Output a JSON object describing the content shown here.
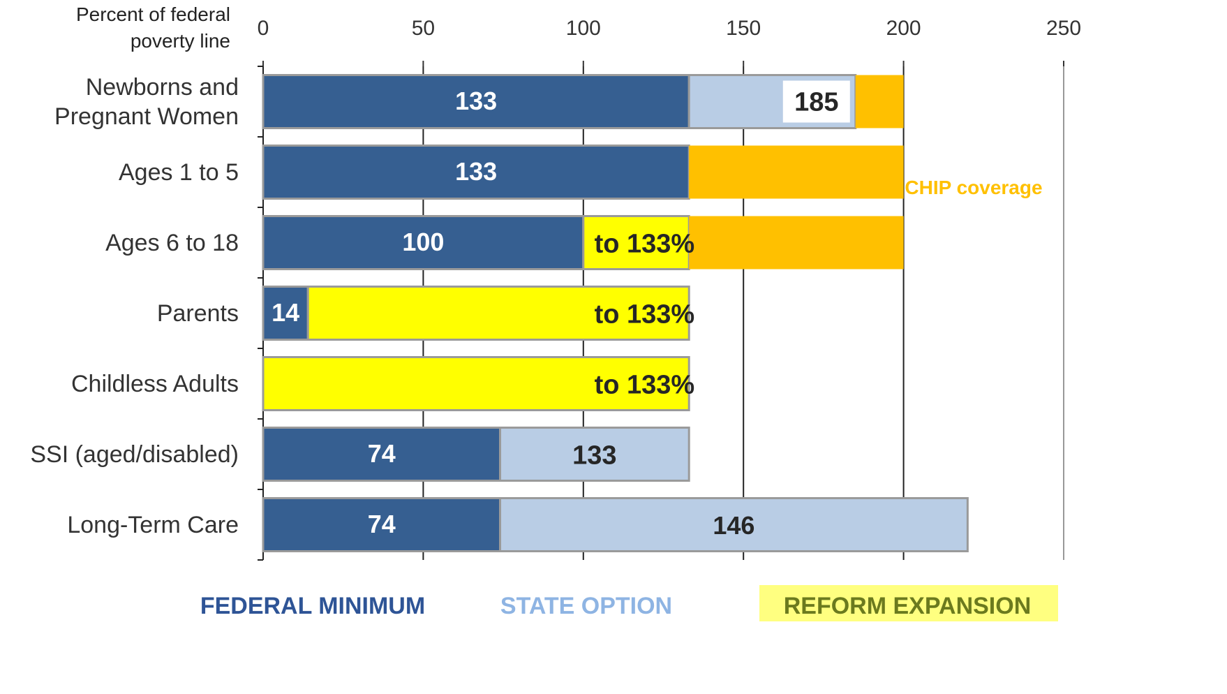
{
  "chart_data": {
    "type": "stacked_barh",
    "xlabel": "Percent of federal poverty line",
    "categories": [
      "Newborns and Pregnant Women",
      "Ages 1 to 5",
      "Ages 6 to 18",
      "Parents",
      "Childless Adults",
      "SSI (aged/disabled)",
      "Long-Term Care"
    ],
    "series": [
      {
        "name": "FEDERAL MINIMUM",
        "color": "#365f91",
        "label_color": "#2e5496",
        "values": [
          133,
          133,
          100,
          14,
          null,
          74,
          74
        ]
      },
      {
        "name": "STATE OPTION",
        "color": "#b9cde5",
        "label_color": "#8eb4e3",
        "values": [
          52,
          null,
          null,
          null,
          null,
          59,
          146
        ],
        "value_labels": [
          null,
          null,
          null,
          null,
          null,
          null,
          "146"
        ]
      },
      {
        "name": "REFORM EXPANSION",
        "color": "#ffff00",
        "label_color": "#6b7a1e",
        "values": [
          null,
          null,
          33,
          119,
          133,
          null,
          null
        ]
      },
      {
        "name": "CHIP coverage",
        "color": "#ffc000",
        "label_color": "#ffc000",
        "in_legend": false,
        "values": [
          15,
          67,
          67,
          null,
          null,
          null,
          null
        ]
      }
    ],
    "annotations": [
      {
        "text": "185",
        "category": "Newborns and Pregnant Women",
        "series": "STATE OPTION"
      },
      {
        "text": "to 133%",
        "category": "Ages 6 to 18",
        "series": "REFORM EXPANSION"
      },
      {
        "text": "to 133%",
        "category": "Parents",
        "series": "REFORM EXPANSION"
      },
      {
        "text": "to 133%",
        "category": "Childless Adults",
        "series": "REFORM EXPANSION"
      },
      {
        "text": "133",
        "category": "SSI (aged/disabled)",
        "series": "STATE OPTION"
      }
    ],
    "xlim": [
      0,
      250
    ],
    "xticks": [
      0,
      50,
      100,
      150,
      200,
      250
    ],
    "grid": true
  }
}
